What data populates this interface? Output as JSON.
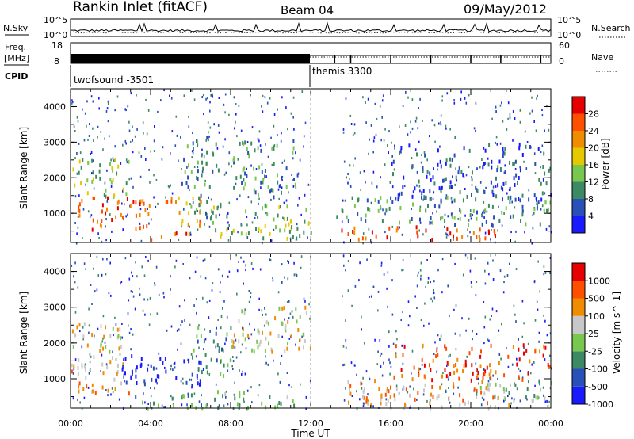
{
  "header": {
    "station": "Rankin Inlet (fitACF)",
    "beam": "Beam 04",
    "date": "09/May/2012"
  },
  "nsky_panel": {
    "left_label": "N.Sky",
    "right_label": "N.Search",
    "left_ticks": [
      "10^5",
      "10^0"
    ],
    "right_ticks": [
      "10^5",
      "10^0"
    ]
  },
  "freq_panel": {
    "left_label_top": "Freq.",
    "left_label_bottom": "[MHz]",
    "right_label": "Nave",
    "left_ticks": [
      "18",
      "8"
    ],
    "right_ticks": [
      "60",
      "0"
    ]
  },
  "cpid": {
    "label": "CPID",
    "mode1": "twofsound -3501",
    "mode2": "themis 3300",
    "switch_hour": 12.0
  },
  "chart_data": [
    {
      "type": "heatmap",
      "name": "power",
      "ylabel": "Slant Range [km]",
      "xlabel": "",
      "xlim_hours": [
        0,
        24
      ],
      "ylim_km": [
        180,
        4500
      ],
      "y_ticks": [
        "1000",
        "2000",
        "3000",
        "4000"
      ],
      "x_ticks": [
        "00:00",
        "04:00",
        "08:00",
        "12:00",
        "16:00",
        "20:00",
        "00:00"
      ],
      "colorbar_label": "Power [dB]",
      "colorbar_ticks": [
        "4",
        "8",
        "12",
        "16",
        "20",
        "24",
        "28"
      ],
      "colors": [
        "#1a1aff",
        "#2850b8",
        "#3c8a64",
        "#78c850",
        "#e6c800",
        "#f08c00",
        "#ff5000",
        "#e60000"
      ],
      "regions": [
        {
          "t": [
            0.0,
            4.0
          ],
          "r": [
            500,
            1500
          ],
          "level": 6
        },
        {
          "t": [
            0.0,
            3.0
          ],
          "r": [
            1500,
            2600
          ],
          "level": 3
        },
        {
          "t": [
            4.0,
            6.0
          ],
          "r": [
            250,
            500
          ],
          "level": 6
        },
        {
          "t": [
            4.5,
            6.5
          ],
          "r": [
            600,
            1500
          ],
          "level": 5
        },
        {
          "t": [
            5.5,
            7.5
          ],
          "r": [
            900,
            3200
          ],
          "level": 2
        },
        {
          "t": [
            7.0,
            12.0
          ],
          "r": [
            300,
            1300
          ],
          "level": 3
        },
        {
          "t": [
            8.0,
            11.5
          ],
          "r": [
            1500,
            3100
          ],
          "level": 2
        },
        {
          "t": [
            13.5,
            21.5
          ],
          "r": [
            300,
            700
          ],
          "level": 6
        },
        {
          "t": [
            13.0,
            24.0
          ],
          "r": [
            700,
            1500
          ],
          "level": 2
        },
        {
          "t": [
            16.0,
            24.0
          ],
          "r": [
            1400,
            3000
          ],
          "level": 1
        }
      ]
    },
    {
      "type": "heatmap",
      "name": "velocity",
      "ylabel": "Slant Range [km]",
      "xlabel": "Time UT",
      "xlim_hours": [
        0,
        24
      ],
      "ylim_km": [
        180,
        4500
      ],
      "y_ticks": [
        "1000",
        "2000",
        "3000",
        "4000"
      ],
      "x_ticks": [
        "00:00",
        "04:00",
        "08:00",
        "12:00",
        "16:00",
        "20:00",
        "00:00"
      ],
      "colorbar_label": "Velocity [m s^-1]",
      "colorbar_ticks": [
        "1000",
        "500",
        "100",
        "25",
        "-25",
        "-100",
        "-500",
        "-1000"
      ],
      "colors": [
        "#1a1aff",
        "#2850b8",
        "#3c8a64",
        "#78c850",
        "#c8c8c8",
        "#f08c00",
        "#ff5000",
        "#e60000"
      ],
      "regions": [
        {
          "t": [
            0.0,
            3.0
          ],
          "r": [
            500,
            1500
          ],
          "level": 5
        },
        {
          "t": [
            0.0,
            2.5
          ],
          "r": [
            1500,
            2600
          ],
          "level": 4
        },
        {
          "t": [
            2.5,
            6.5
          ],
          "r": [
            800,
            1700
          ],
          "level": 0
        },
        {
          "t": [
            3.0,
            7.0
          ],
          "r": [
            200,
            600
          ],
          "level": 2
        },
        {
          "t": [
            6.0,
            8.0
          ],
          "r": [
            1000,
            2500
          ],
          "level": 2
        },
        {
          "t": [
            7.0,
            11.5
          ],
          "r": [
            200,
            700
          ],
          "level": 3
        },
        {
          "t": [
            8.0,
            12.0
          ],
          "r": [
            1800,
            3100
          ],
          "level": 4
        },
        {
          "t": [
            13.5,
            22.0
          ],
          "r": [
            200,
            1000
          ],
          "level": 5
        },
        {
          "t": [
            16.0,
            24.0
          ],
          "r": [
            1000,
            2000
          ],
          "level": 6
        },
        {
          "t": [
            20.0,
            24.0
          ],
          "r": [
            400,
            1000
          ],
          "level": 3
        }
      ]
    }
  ]
}
